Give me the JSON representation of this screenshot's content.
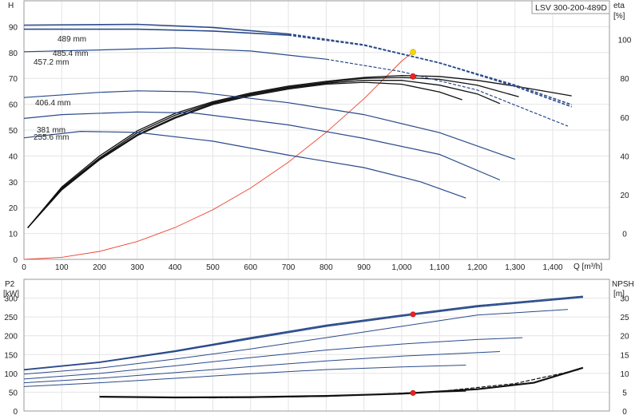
{
  "model": "LSV 300-200-489D",
  "chart_data": [
    {
      "type": "line",
      "title": "",
      "x_axis": {
        "label": "Q [m³/h]",
        "range": [
          0,
          1550
        ],
        "ticks": [
          0,
          100,
          200,
          300,
          400,
          500,
          600,
          700,
          800,
          900,
          1000,
          1100,
          1200,
          1300,
          1400
        ],
        "tick_labels": [
          "0",
          "100",
          "200",
          "300",
          "400",
          "500",
          "600",
          "700",
          "800",
          "900",
          "1,000",
          "1,100",
          "1,200",
          "1,300",
          "1,400"
        ]
      },
      "y_axis_left": {
        "label": "H",
        "unit": "[m]",
        "range": [
          0,
          100
        ],
        "ticks": [
          0,
          10,
          20,
          30,
          40,
          50,
          60,
          70,
          80,
          90
        ]
      },
      "y_axis_right": {
        "label": "eta",
        "unit": "[%]",
        "range": [
          -13.3,
          120
        ],
        "ticks": [
          0,
          20,
          40,
          60,
          80,
          100
        ]
      },
      "grid": true,
      "head_curves": [
        {
          "label": "489 mm",
          "label_x": 1,
          "color": "#2a4a8a",
          "dashed_from": 700,
          "points": [
            [
              0,
              90.6
            ],
            [
              300,
              90.9
            ],
            [
              500,
              89.7
            ],
            [
              700,
              87.2
            ],
            [
              900,
              83.0
            ],
            [
              1100,
              76.0
            ],
            [
              1300,
              67.4
            ],
            [
              1450,
              59.8
            ]
          ]
        },
        {
          "label": "485.4 mm",
          "label_x": 2,
          "color": "#2a4a8a",
          "dashed_from": 700,
          "points": [
            [
              0,
              89.0
            ],
            [
              300,
              89.0
            ],
            [
              500,
              88.3
            ],
            [
              700,
              86.7
            ],
            [
              900,
              82.8
            ],
            [
              1100,
              76.0
            ],
            [
              1300,
              66.9
            ],
            [
              1450,
              59.0
            ]
          ]
        },
        {
          "label": "457.2 mm",
          "label_x": 3,
          "color": "#2a4a8a",
          "dashed_from": 850,
          "points": [
            [
              0,
              80.3
            ],
            [
              200,
              81.0
            ],
            [
              400,
              81.8
            ],
            [
              600,
              80.6
            ],
            [
              800,
              77.4
            ],
            [
              1000,
              72.6
            ],
            [
              1200,
              65.5
            ],
            [
              1440,
              51.5
            ]
          ]
        },
        {
          "label": "406.4 mm",
          "label_x": 4,
          "color": "#2a4a8a",
          "dashed_from": null,
          "points": [
            [
              0,
              62.6
            ],
            [
              200,
              64.6
            ],
            [
              300,
              65.2
            ],
            [
              450,
              64.8
            ],
            [
              700,
              60.6
            ],
            [
              900,
              56.0
            ],
            [
              1100,
              49.0
            ],
            [
              1300,
              38.7
            ]
          ]
        },
        {
          "label": "381 mm",
          "label_x": 5,
          "color": "#2a4a8a",
          "dashed_from": null,
          "points": [
            [
              0,
              54.5
            ],
            [
              100,
              56.0
            ],
            [
              300,
              57.0
            ],
            [
              450,
              56.6
            ],
            [
              700,
              52.0
            ],
            [
              900,
              46.8
            ],
            [
              1100,
              40.6
            ],
            [
              1260,
              30.7
            ]
          ]
        },
        {
          "label": "255.6 mm",
          "label_x": 6,
          "color": "#2a4a8a",
          "dashed_from": null,
          "points": [
            [
              0,
              47.0
            ],
            [
              150,
              49.5
            ],
            [
              300,
              49.1
            ],
            [
              500,
              45.7
            ],
            [
              700,
              40.3
            ],
            [
              900,
              35.5
            ],
            [
              1050,
              30.0
            ],
            [
              1170,
              23.7
            ]
          ]
        }
      ],
      "efficiency_curves": [
        {
          "color": "#111111",
          "points": [
            [
              10,
              3.0
            ],
            [
              100,
              24.0
            ],
            [
              200,
              40.0
            ],
            [
              300,
              53.0
            ],
            [
              400,
              62.0
            ],
            [
              500,
              68.0
            ],
            [
              600,
              72.5
            ],
            [
              700,
              76.0
            ],
            [
              800,
              78.5
            ],
            [
              900,
              80.5
            ],
            [
              1000,
              81.5
            ],
            [
              1100,
              81.0
            ],
            [
              1200,
              79.0
            ],
            [
              1300,
              76.0
            ],
            [
              1450,
              71.0
            ]
          ]
        },
        {
          "color": "#111111",
          "points": [
            [
              10,
              3.0
            ],
            [
              100,
              23.5
            ],
            [
              200,
              39.0
            ],
            [
              300,
              52.0
            ],
            [
              400,
              61.0
            ],
            [
              500,
              67.5
            ],
            [
              600,
              72.0
            ],
            [
              700,
              75.5
            ],
            [
              800,
              78.0
            ],
            [
              900,
              80.0
            ],
            [
              1000,
              80.5
            ],
            [
              1100,
              79.5
            ],
            [
              1200,
              76.5
            ],
            [
              1310,
              70.5
            ]
          ]
        },
        {
          "color": "#111111",
          "points": [
            [
              10,
              3.0
            ],
            [
              100,
              23.0
            ],
            [
              200,
              38.5
            ],
            [
              300,
              51.0
            ],
            [
              400,
              60.0
            ],
            [
              500,
              67.0
            ],
            [
              600,
              71.5
            ],
            [
              700,
              75.0
            ],
            [
              800,
              77.5
            ],
            [
              900,
              79.0
            ],
            [
              1000,
              79.0
            ],
            [
              1100,
              76.5
            ],
            [
              1200,
              72.0
            ],
            [
              1260,
              67.0
            ]
          ]
        },
        {
          "color": "#111111",
          "points": [
            [
              10,
              3.0
            ],
            [
              100,
              22.5
            ],
            [
              200,
              38.0
            ],
            [
              300,
              50.5
            ],
            [
              400,
              59.5
            ],
            [
              500,
              66.5
            ],
            [
              600,
              71.0
            ],
            [
              700,
              74.5
            ],
            [
              800,
              77.0
            ],
            [
              900,
              78.0
            ],
            [
              1000,
              77.0
            ],
            [
              1100,
              73.0
            ],
            [
              1160,
              69.0
            ]
          ]
        }
      ],
      "system_curve": {
        "color": "#ee4433",
        "points": [
          [
            0,
            0
          ],
          [
            100,
            0.8
          ],
          [
            200,
            3.1
          ],
          [
            300,
            6.9
          ],
          [
            400,
            12.3
          ],
          [
            500,
            19.2
          ],
          [
            600,
            27.6
          ],
          [
            700,
            37.6
          ],
          [
            800,
            49.1
          ],
          [
            900,
            62.1
          ],
          [
            1000,
            76.7
          ],
          [
            1030,
            80.2
          ]
        ]
      },
      "duty_points": [
        {
          "q": 1030,
          "h": 80.2,
          "color": "#f5d800"
        },
        {
          "q": 1030,
          "eta": 81.0,
          "color": "#ee2222"
        }
      ]
    },
    {
      "type": "line",
      "title": "",
      "x_axis": {
        "label": "Q [m³/h]",
        "range": [
          0,
          1550
        ]
      },
      "y_axis_left": {
        "label": "P2",
        "unit": "[kW]",
        "range": [
          0,
          350
        ],
        "ticks": [
          0,
          50,
          100,
          150,
          200,
          250,
          300
        ]
      },
      "y_axis_right": {
        "label": "NPSH",
        "unit": "[m]",
        "range": [
          0,
          35
        ],
        "ticks": [
          0,
          5,
          10,
          15,
          20,
          25,
          30
        ]
      },
      "grid": true,
      "power_curves": [
        {
          "color": "#2a4a8a",
          "points": [
            [
              0,
              110
            ],
            [
              200,
              130
            ],
            [
              400,
              160
            ],
            [
              600,
              195
            ],
            [
              800,
              228
            ],
            [
              1000,
              255
            ],
            [
              1200,
              280
            ],
            [
              1480,
              305
            ]
          ]
        },
        {
          "color": "#2a4a8a",
          "points": [
            [
              0,
              109
            ],
            [
              200,
              129
            ],
            [
              400,
              158
            ],
            [
              600,
              192
            ],
            [
              800,
              225
            ],
            [
              1000,
              252
            ],
            [
              1200,
              277
            ],
            [
              1480,
              302
            ]
          ]
        },
        {
          "color": "#2a4a8a",
          "points": [
            [
              0,
              98
            ],
            [
              200,
              114
            ],
            [
              400,
              138
            ],
            [
              600,
              165
            ],
            [
              800,
              195
            ],
            [
              1000,
              225
            ],
            [
              1200,
              255
            ],
            [
              1440,
              270
            ]
          ]
        },
        {
          "color": "#2a4a8a",
          "points": [
            [
              0,
              85
            ],
            [
              200,
              100
            ],
            [
              400,
              120
            ],
            [
              600,
              142
            ],
            [
              800,
              162
            ],
            [
              1000,
              178
            ],
            [
              1200,
              190
            ],
            [
              1320,
              195
            ]
          ]
        },
        {
          "color": "#2a4a8a",
          "points": [
            [
              0,
              75
            ],
            [
              200,
              87
            ],
            [
              400,
              102
            ],
            [
              600,
              118
            ],
            [
              800,
              133
            ],
            [
              1000,
              146
            ],
            [
              1260,
              158
            ]
          ]
        },
        {
          "color": "#2a4a8a",
          "points": [
            [
              0,
              65
            ],
            [
              200,
              75
            ],
            [
              400,
              87
            ],
            [
              600,
              99
            ],
            [
              800,
              110
            ],
            [
              1000,
              117
            ],
            [
              1170,
              122
            ]
          ]
        }
      ],
      "npsh_curves": [
        {
          "color": "#111111",
          "points": [
            [
              200,
              3.8
            ],
            [
              400,
              3.6
            ],
            [
              600,
              3.7
            ],
            [
              800,
              4.0
            ],
            [
              1000,
              4.6
            ],
            [
              1200,
              5.8
            ],
            [
              1350,
              7.5
            ],
            [
              1480,
              11.5
            ]
          ]
        },
        {
          "color": "#111111",
          "points": [
            [
              250,
              3.7
            ],
            [
              500,
              3.5
            ],
            [
              700,
              3.8
            ],
            [
              900,
              4.3
            ],
            [
              1100,
              5.2
            ],
            [
              1300,
              7.3
            ],
            [
              1470,
              11.0
            ]
          ]
        },
        {
          "color": "#111111",
          "points": [
            [
              300,
              3.7
            ],
            [
              600,
              3.6
            ],
            [
              800,
              3.9
            ],
            [
              1000,
              4.7
            ],
            [
              1170,
              5.3
            ]
          ]
        }
      ],
      "duty_points": [
        {
          "q": 1030,
          "p2": 257,
          "color": "#ee2222"
        },
        {
          "q": 1030,
          "npsh": 4.8,
          "color": "#ee2222"
        }
      ]
    }
  ]
}
